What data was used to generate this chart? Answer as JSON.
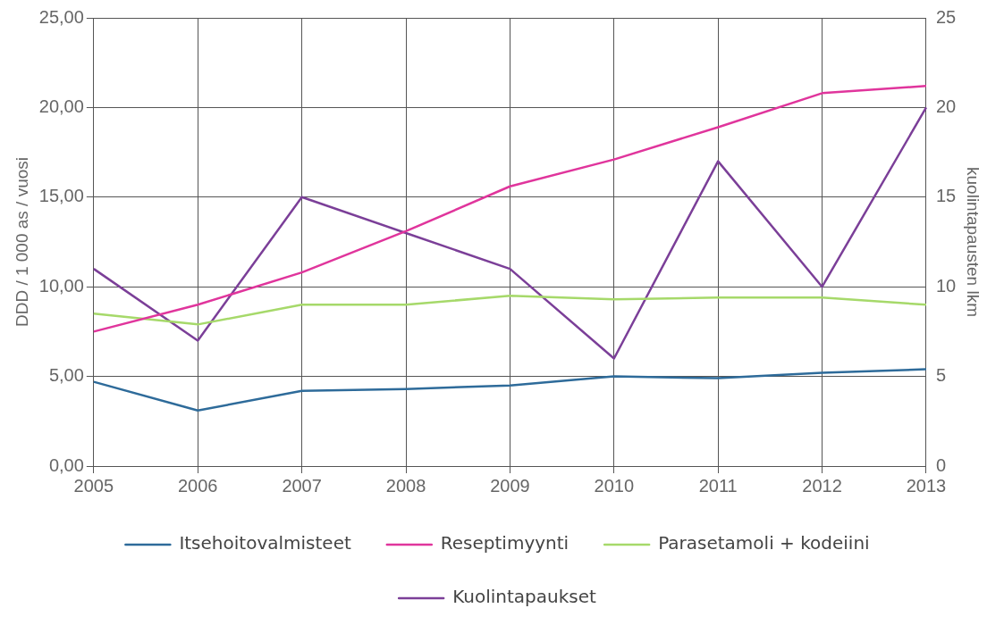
{
  "chart_data": {
    "type": "line",
    "ylabel": "DDD / 1 000 as / vuosi",
    "y2label": "kuolintapausten lkm",
    "categories": [
      "2005",
      "2006",
      "2007",
      "2008",
      "2009",
      "2010",
      "2011",
      "2012",
      "2013"
    ],
    "series": [
      {
        "name": "Itsehoitovalmisteet",
        "color": "#2e6b9a",
        "values": [
          4.7,
          3.1,
          4.2,
          4.3,
          4.5,
          5.0,
          4.9,
          5.2,
          5.4
        ]
      },
      {
        "name": "Reseptimyynti",
        "color": "#e0359c",
        "values": [
          7.5,
          9.0,
          10.8,
          13.1,
          15.6,
          17.1,
          18.9,
          20.8,
          21.2
        ]
      },
      {
        "name": "Parasetamoli + kodeiini",
        "color": "#a6d96a",
        "values": [
          8.5,
          7.9,
          9.0,
          9.0,
          9.5,
          9.3,
          9.4,
          9.4,
          9.0
        ]
      },
      {
        "name": "Kuolintapaukset",
        "color": "#7b3f98",
        "axis": "y2",
        "values": [
          11,
          7,
          15,
          13,
          11,
          6,
          17,
          10,
          20
        ]
      }
    ],
    "ylim": [
      0,
      25
    ],
    "yticks": [
      {
        "value": 0,
        "label": "0,00"
      },
      {
        "value": 5,
        "label": "5,00"
      },
      {
        "value": 10,
        "label": "10,00"
      },
      {
        "value": 15,
        "label": "15,00"
      },
      {
        "value": 20,
        "label": "20,00"
      },
      {
        "value": 25,
        "label": "25,00"
      }
    ],
    "y2lim": [
      0,
      25
    ],
    "y2ticks": [
      0,
      5,
      10,
      15,
      20,
      25
    ],
    "grid": true,
    "legend": "bottom",
    "marker": "none",
    "line_style": "solid"
  }
}
